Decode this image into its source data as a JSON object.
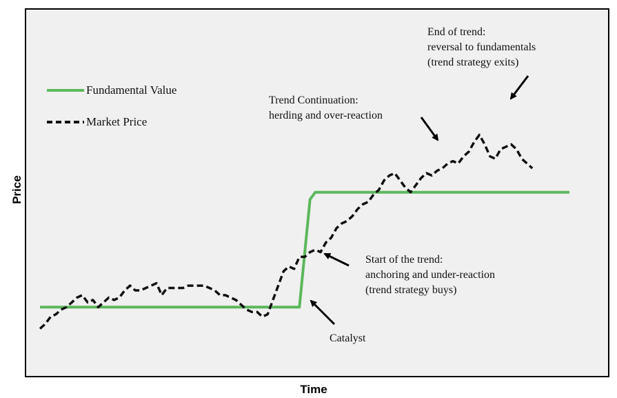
{
  "chart_data": {
    "type": "line",
    "title": "",
    "xlabel": "Time",
    "ylabel": "Price",
    "grid": false,
    "legend_position": "upper-left",
    "colors": {
      "fundamental": "#5cb85c",
      "market": "#111111",
      "plot_bg": "#f0f0f0"
    },
    "series": [
      {
        "key": "fundamental",
        "name": "Fundamental Value",
        "style": "solid",
        "points": [
          [
            0,
            10
          ],
          [
            49,
            10
          ],
          [
            51,
            55
          ],
          [
            52,
            58
          ],
          [
            100,
            58
          ]
        ]
      },
      {
        "key": "market",
        "name": "Market Price",
        "style": "dashed",
        "points": [
          [
            0,
            1
          ],
          [
            1,
            3
          ],
          [
            2,
            6
          ],
          [
            3,
            7
          ],
          [
            4,
            9
          ],
          [
            5,
            10
          ],
          [
            6,
            12
          ],
          [
            7,
            14
          ],
          [
            8,
            15
          ],
          [
            9,
            12
          ],
          [
            10,
            13
          ],
          [
            11,
            10
          ],
          [
            12,
            12
          ],
          [
            13,
            14
          ],
          [
            14,
            13
          ],
          [
            15,
            14
          ],
          [
            16,
            17
          ],
          [
            17,
            19
          ],
          [
            18,
            17
          ],
          [
            19,
            17
          ],
          [
            20,
            18
          ],
          [
            21,
            19
          ],
          [
            22,
            20
          ],
          [
            23,
            15
          ],
          [
            24,
            18
          ],
          [
            25,
            18
          ],
          [
            26,
            18
          ],
          [
            27,
            18
          ],
          [
            28,
            19
          ],
          [
            29,
            19
          ],
          [
            30,
            19
          ],
          [
            31,
            19
          ],
          [
            32,
            18
          ],
          [
            33,
            17
          ],
          [
            34,
            15
          ],
          [
            35,
            15
          ],
          [
            36,
            14
          ],
          [
            37,
            13
          ],
          [
            38,
            11
          ],
          [
            39,
            9
          ],
          [
            40,
            8
          ],
          [
            41,
            8
          ],
          [
            42,
            6
          ],
          [
            43,
            7
          ],
          [
            44,
            13
          ],
          [
            45,
            19
          ],
          [
            46,
            25
          ],
          [
            47,
            27
          ],
          [
            48,
            26
          ],
          [
            49,
            31
          ],
          [
            50,
            31
          ],
          [
            51,
            33
          ],
          [
            52,
            34
          ],
          [
            53,
            33
          ],
          [
            54,
            37
          ],
          [
            55,
            39
          ],
          [
            56,
            43
          ],
          [
            57,
            45
          ],
          [
            58,
            46
          ],
          [
            59,
            48
          ],
          [
            60,
            51
          ],
          [
            61,
            53
          ],
          [
            62,
            54
          ],
          [
            63,
            57
          ],
          [
            64,
            59
          ],
          [
            65,
            63
          ],
          [
            66,
            65
          ],
          [
            67,
            66
          ],
          [
            68,
            63
          ],
          [
            69,
            60
          ],
          [
            70,
            58
          ],
          [
            71,
            61
          ],
          [
            72,
            64
          ],
          [
            73,
            66
          ],
          [
            74,
            65
          ],
          [
            75,
            67
          ],
          [
            76,
            68
          ],
          [
            77,
            70
          ],
          [
            78,
            71
          ],
          [
            79,
            70
          ],
          [
            80,
            73
          ],
          [
            81,
            75
          ],
          [
            82,
            79
          ],
          [
            83,
            82
          ],
          [
            84,
            78
          ],
          [
            85,
            73
          ],
          [
            86,
            72
          ],
          [
            87,
            76
          ],
          [
            88,
            77
          ],
          [
            89,
            78
          ],
          [
            90,
            76
          ],
          [
            91,
            72
          ],
          [
            92,
            70
          ],
          [
            93,
            68
          ]
        ]
      }
    ],
    "annotations": [
      {
        "key": "catalyst",
        "lines": [
          "Catalyst"
        ]
      },
      {
        "key": "start",
        "lines": [
          "Start of the trend:",
          "anchoring and under-reaction",
          "(trend strategy buys)"
        ]
      },
      {
        "key": "continuation",
        "lines": [
          "Trend Continuation:",
          "herding and over-reaction"
        ]
      },
      {
        "key": "end",
        "lines": [
          "End of trend:",
          "reversal to fundamentals",
          "(trend strategy exits)"
        ]
      }
    ]
  }
}
